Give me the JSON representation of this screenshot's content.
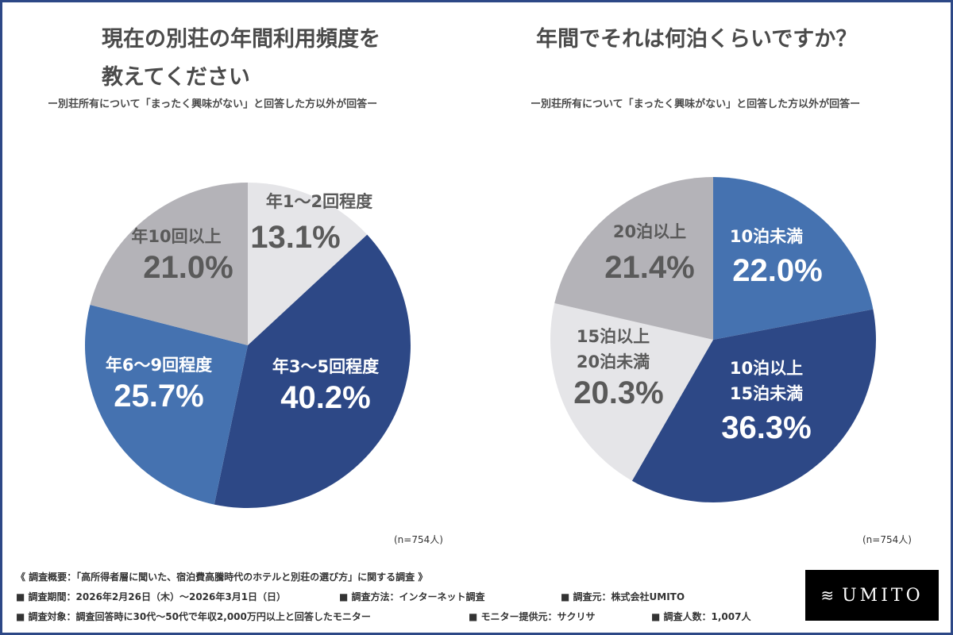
{
  "chart_data": [
    {
      "type": "pie",
      "title": "現在の別荘の年間利用頻度を教えてください",
      "subtitle": "ー別荘所有について「まったく興味がない」と回答した方以外が回答ー",
      "note": "(n=754人)",
      "start": "top",
      "direction": "clockwise",
      "slices": [
        {
          "label": "年1～2回程度",
          "value": 13.1,
          "display": "13.1%",
          "color": "#e5e5e8"
        },
        {
          "label": "年3～5回程度",
          "value": 40.2,
          "display": "40.2%",
          "color": "#2d4886"
        },
        {
          "label": "年6～9回程度",
          "value": 25.7,
          "display": "25.7%",
          "color": "#4572b0"
        },
        {
          "label": "年10回以上",
          "value": 21.0,
          "display": "21.0%",
          "color": "#b4b3b8"
        }
      ]
    },
    {
      "type": "pie",
      "title": "年間でそれは何泊くらいですか？",
      "subtitle": "ー別荘所有について「まったく興味がない」と回答した方以外が回答ー",
      "note": "(n=754人)",
      "start": "top",
      "direction": "clockwise",
      "slices": [
        {
          "label": "10泊未満",
          "value": 22.0,
          "display": "22.0%",
          "color": "#4572b0"
        },
        {
          "label": "10泊以上 15泊未満",
          "lines": [
            "10泊以上",
            "15泊未満"
          ],
          "value": 36.3,
          "display": "36.3%",
          "color": "#2d4886"
        },
        {
          "label": "15泊以上 20泊未満",
          "lines": [
            "15泊以上",
            "20泊未満"
          ],
          "value": 20.3,
          "display": "20.3%",
          "color": "#e5e5e8"
        },
        {
          "label": "20泊以上",
          "value": 21.4,
          "display": "21.4%",
          "color": "#b4b3b8"
        }
      ]
    }
  ],
  "left_title_lines": [
    "現在の別荘の年間利用頻度を",
    "教えてください"
  ],
  "footer": {
    "overview": "《 調査概要：「高所得者層に聞いた、宿泊費高騰時代のホテルと別荘の選び方」に関する調査 》",
    "period": "■ 調査期間：2026年2月26日（木）～2026年3月1日（日）",
    "method": "■ 調査方法：インターネット調査",
    "source": "■ 調査元：株式会社UMITO",
    "target": "■ 調査対象：調査回答時に30代～50代で年収2,000万円以上と回答したモニター",
    "provider": "■ モニター提供元：サクリサ",
    "count": "■ 調査人数：1,007人"
  },
  "logo": "UMITO",
  "frame_color": "#2d4886"
}
